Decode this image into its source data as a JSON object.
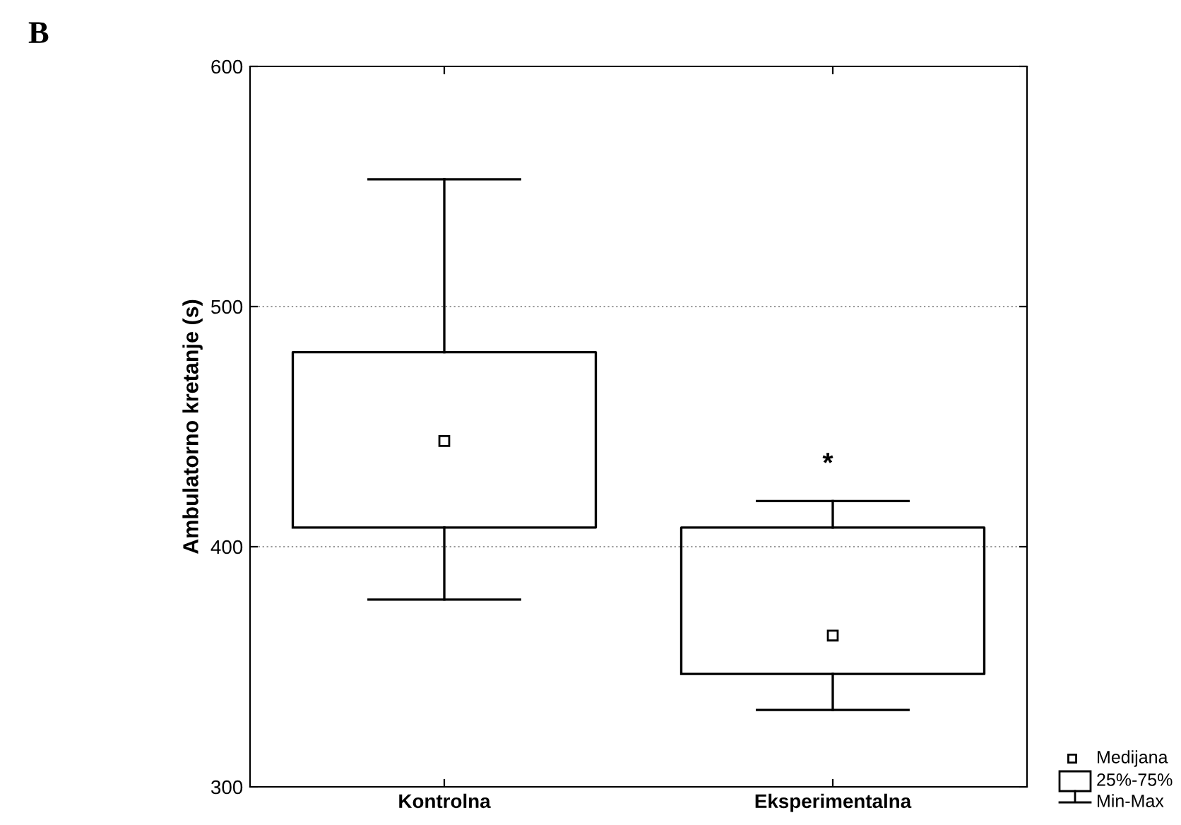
{
  "chart_data": {
    "type": "box",
    "ylabel": "Ambulatorno kretanje (s)",
    "categories": [
      "Kontrolna",
      "Eksperimentalna"
    ],
    "boxes": [
      {
        "low": 378,
        "q1": 408,
        "median": 444,
        "q3": 481,
        "high": 553
      },
      {
        "low": 332,
        "q1": 347,
        "median": 363,
        "q3": 408,
        "high": 419
      }
    ],
    "ylim": [
      300,
      600
    ],
    "yticks": [
      300,
      400,
      500,
      600
    ],
    "grid": "y",
    "marker": "square",
    "annotations": [
      "B",
      "*",
      "Medijana",
      "25%-75%",
      "Min-Max"
    ]
  }
}
